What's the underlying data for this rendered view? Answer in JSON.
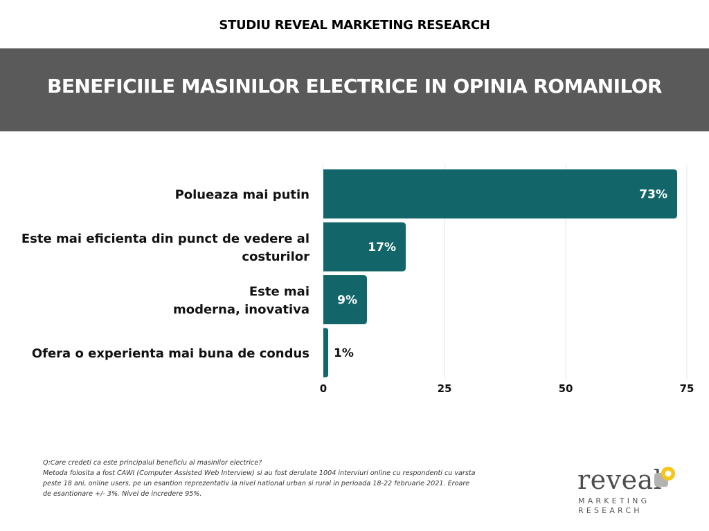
{
  "header": {
    "study_title": "STUDIU REVEAL MARKETING RESEARCH",
    "banner_title": "BENEFICIILE MASINILOR ELECTRICE IN OPINIA ROMANILOR"
  },
  "colors": {
    "banner_bg": "#5a5a5a",
    "bar": "#12666a",
    "grid": "#e6e6e6",
    "text": "#111111",
    "logo_yellow": "#f5c518",
    "logo_gray": "#b3b3b3"
  },
  "chart_data": {
    "type": "bar",
    "orientation": "horizontal",
    "categories": [
      [
        "Polueaza mai putin"
      ],
      [
        "Este mai eficienta din punct de vedere al",
        "costurilor"
      ],
      [
        "Este mai",
        "moderna, inovativa"
      ],
      [
        "Ofera o experienta mai buna de condus"
      ]
    ],
    "values": [
      73,
      17,
      9,
      1
    ],
    "value_labels": [
      "73%",
      "17%",
      "9%",
      "1%"
    ],
    "xlim": [
      0,
      75
    ],
    "xticks": [
      0,
      25,
      50,
      75
    ],
    "grid": true,
    "legend": false
  },
  "footnote": {
    "lines": [
      "Q:Care credeti ca este principalul beneficiu al masinilor electrice?",
      "Metoda folosita a fost CAWI (Computer Assisted Web Interview) si au fost derulate 1004 interviuri online cu respondenti cu varsta peste 18 ani, online users, pe un esantion reprezentativ la nivel national urban si rural in perioada 18-22 februarie 2021. Eroare de esantionare +/- 3%. Nivel de incredere 95%."
    ]
  },
  "logo": {
    "word": "reveal",
    "line1": "MARKETING",
    "line2": "RESEARCH"
  }
}
